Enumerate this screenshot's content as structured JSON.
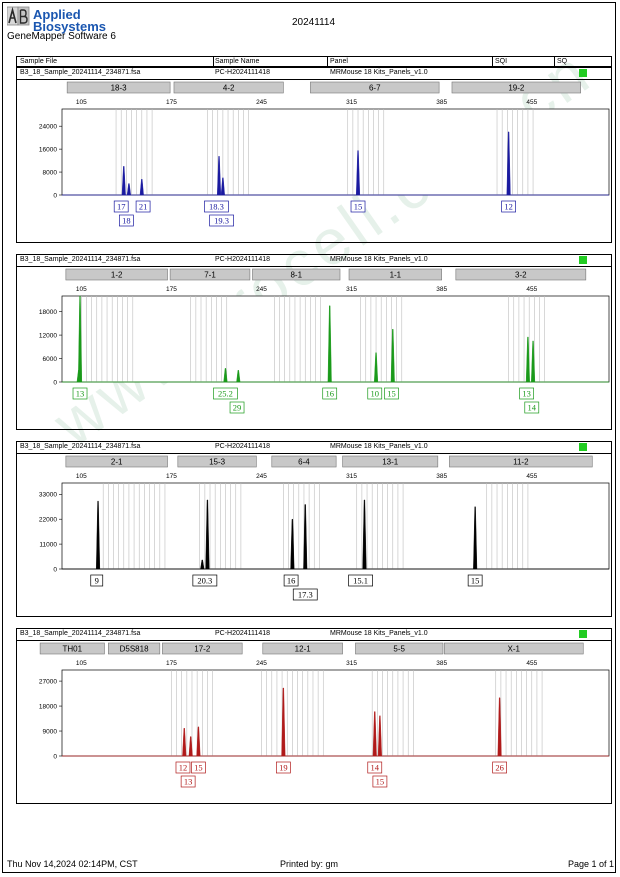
{
  "header": {
    "brand_line1": "Applied",
    "brand_line2": "Biosystems",
    "software": "GeneMapper Software 6",
    "date": "20241114"
  },
  "columns": {
    "sample_file": "Sample File",
    "sample_name": "Sample Name",
    "panel": "Panel",
    "sqi": "SQI",
    "sq": "SQ"
  },
  "watermark": "www.procell.com.cn",
  "colors": {
    "blue": "#1a1aa0",
    "green": "#1a9a1a",
    "black": "#000000",
    "red": "#b01a1a",
    "marker_bg": "#c8c8c8",
    "sq_ok": "#22cc22"
  },
  "chart_data": [
    {
      "type": "line",
      "dye": "blue",
      "sample_file": "B3_18_Sample_20241114_234871.fsa",
      "sample_name": "PC-H2024111418",
      "panel": "MRMouse 18 Kits_Panels_v1.0",
      "x_ticks": [
        "105",
        "175",
        "245",
        "315",
        "385",
        "455"
      ],
      "xlim": [
        90,
        515
      ],
      "y_ticks": [
        "0",
        "8000",
        "16000",
        "24000"
      ],
      "ylim": [
        0,
        30000
      ],
      "markers": [
        {
          "label": "18-3",
          "start": 94,
          "end": 174
        },
        {
          "label": "4-2",
          "start": 177,
          "end": 262
        },
        {
          "label": "6-7",
          "start": 283,
          "end": 383
        },
        {
          "label": "19-2",
          "start": 393,
          "end": 493
        }
      ],
      "bins": [
        132,
        136,
        140,
        144,
        148,
        152,
        156,
        160,
        203,
        207,
        211,
        215,
        219,
        223,
        227,
        231,
        235,
        312,
        316,
        320,
        324,
        328,
        332,
        336,
        340,
        428,
        432,
        436,
        440,
        444,
        448,
        452,
        456
      ],
      "peaks": [
        {
          "x": 138,
          "y": 10000
        },
        {
          "x": 142,
          "y": 4000
        },
        {
          "x": 152,
          "y": 5500
        },
        {
          "x": 212,
          "y": 13500
        },
        {
          "x": 215,
          "y": 6000
        },
        {
          "x": 320,
          "y": 15500
        },
        {
          "x": 437,
          "y": 22000
        }
      ],
      "alleles": [
        {
          "label": "17",
          "x": 136,
          "row": 0
        },
        {
          "label": "18",
          "x": 140,
          "row": 1
        },
        {
          "label": "21",
          "x": 153,
          "row": 0
        },
        {
          "label": "18.3",
          "x": 210,
          "row": 0
        },
        {
          "label": "19.3",
          "x": 214,
          "row": 1
        },
        {
          "label": "15",
          "x": 320,
          "row": 0
        },
        {
          "label": "12",
          "x": 437,
          "row": 0
        }
      ]
    },
    {
      "type": "line",
      "dye": "green",
      "sample_file": "B3_18_Sample_20241114_234871.fsa",
      "sample_name": "PC-H2024111418",
      "panel": "MRMouse 18 Kits_Panels_v1.0",
      "x_ticks": [
        "105",
        "175",
        "245",
        "315",
        "385",
        "455"
      ],
      "xlim": [
        90,
        515
      ],
      "y_ticks": [
        "0",
        "6000",
        "12000",
        "18000"
      ],
      "ylim": [
        0,
        22000
      ],
      "markers": [
        {
          "label": "1-2",
          "start": 93,
          "end": 172
        },
        {
          "label": "7-1",
          "start": 174,
          "end": 236
        },
        {
          "label": "8-1",
          "start": 238,
          "end": 306
        },
        {
          "label": "1-1",
          "start": 313,
          "end": 385
        },
        {
          "label": "3-2",
          "start": 396,
          "end": 497
        }
      ],
      "bins": [
        105,
        109,
        113,
        117,
        121,
        125,
        129,
        133,
        137,
        141,
        145,
        190,
        194,
        198,
        202,
        206,
        210,
        214,
        218,
        255,
        259,
        263,
        267,
        271,
        275,
        279,
        283,
        287,
        291,
        322,
        326,
        330,
        334,
        338,
        342,
        346,
        350,
        354,
        437,
        441,
        445,
        449,
        453,
        457,
        461,
        465
      ],
      "peaks": [
        {
          "x": 104,
          "y": 22000
        },
        {
          "x": 103,
          "y": 3000
        },
        {
          "x": 217,
          "y": 3500
        },
        {
          "x": 227,
          "y": 3000
        },
        {
          "x": 298,
          "y": 19500
        },
        {
          "x": 334,
          "y": 7500
        },
        {
          "x": 347,
          "y": 13500
        },
        {
          "x": 452,
          "y": 11500
        },
        {
          "x": 456,
          "y": 10500
        }
      ],
      "alleles": [
        {
          "label": "13",
          "x": 104,
          "row": 0
        },
        {
          "label": "25.2",
          "x": 217,
          "row": 0
        },
        {
          "label": "29",
          "x": 226,
          "row": 1
        },
        {
          "label": "16",
          "x": 298,
          "row": 0
        },
        {
          "label": "10",
          "x": 333,
          "row": 0
        },
        {
          "label": "15",
          "x": 346,
          "row": 0
        },
        {
          "label": "13",
          "x": 451,
          "row": 0
        },
        {
          "label": "14",
          "x": 455,
          "row": 1
        }
      ]
    },
    {
      "type": "line",
      "dye": "black",
      "sample_file": "B3_18_Sample_20241114_234871.fsa",
      "sample_name": "PC-H2024111418",
      "panel": "MRMouse 18 Kits_Panels_v1.0",
      "x_ticks": [
        "105",
        "175",
        "245",
        "315",
        "385",
        "455"
      ],
      "xlim": [
        90,
        515
      ],
      "y_ticks": [
        "0",
        "11000",
        "22000",
        "33000"
      ],
      "ylim": [
        0,
        38000
      ],
      "markers": [
        {
          "label": "2-1",
          "start": 93,
          "end": 172
        },
        {
          "label": "15-3",
          "start": 180,
          "end": 241
        },
        {
          "label": "6-4",
          "start": 253,
          "end": 303
        },
        {
          "label": "13-1",
          "start": 308,
          "end": 382
        },
        {
          "label": "11-2",
          "start": 391,
          "end": 502
        }
      ],
      "bins": [
        122,
        126,
        130,
        134,
        138,
        142,
        146,
        150,
        154,
        158,
        162,
        166,
        170,
        197,
        201,
        205,
        209,
        213,
        217,
        221,
        225,
        229,
        262,
        266,
        270,
        274,
        278,
        282,
        286,
        290,
        319,
        323,
        327,
        331,
        335,
        339,
        343,
        347,
        351,
        355,
        420,
        424,
        428,
        432,
        436,
        440,
        444,
        448,
        452
      ],
      "peaks": [
        {
          "x": 118,
          "y": 30000
        },
        {
          "x": 203,
          "y": 30500
        },
        {
          "x": 199,
          "y": 4000
        },
        {
          "x": 269,
          "y": 22000
        },
        {
          "x": 279,
          "y": 28500
        },
        {
          "x": 325,
          "y": 30500
        },
        {
          "x": 411,
          "y": 27500
        }
      ],
      "alleles": [
        {
          "label": "9",
          "x": 117,
          "row": 0
        },
        {
          "label": "20.3",
          "x": 201,
          "row": 0
        },
        {
          "label": "16",
          "x": 268,
          "row": 0
        },
        {
          "label": "17.3",
          "x": 279,
          "row": 1
        },
        {
          "label": "15.1",
          "x": 322,
          "row": 0
        },
        {
          "label": "15",
          "x": 411,
          "row": 0
        }
      ]
    },
    {
      "type": "line",
      "dye": "red",
      "sample_file": "B3_18_Sample_20241114_234871.fsa",
      "sample_name": "PC-H2024111418",
      "panel": "MRMouse 18 Kits_Panels_v1.0",
      "x_ticks": [
        "105",
        "175",
        "245",
        "315",
        "385",
        "455"
      ],
      "xlim": [
        90,
        515
      ],
      "y_ticks": [
        "0",
        "9000",
        "18000",
        "27000"
      ],
      "ylim": [
        0,
        31000
      ],
      "markers": [
        {
          "label": "TH01",
          "start": 73,
          "end": 123
        },
        {
          "label": "D5S818",
          "start": 126,
          "end": 166
        },
        {
          "label": "17-2",
          "start": 168,
          "end": 230
        },
        {
          "label": "12-1",
          "start": 246,
          "end": 308
        },
        {
          "label": "5-5",
          "start": 318,
          "end": 386
        },
        {
          "label": "X-1",
          "start": 387,
          "end": 495
        }
      ],
      "bins": [
        175,
        179,
        183,
        187,
        191,
        195,
        199,
        203,
        207,
        245,
        249,
        253,
        257,
        261,
        265,
        269,
        273,
        277,
        281,
        285,
        289,
        293,
        331,
        335,
        339,
        343,
        347,
        351,
        355,
        359,
        363,
        427,
        431,
        435,
        439,
        443,
        447,
        451,
        455,
        459,
        463
      ],
      "peaks": [
        {
          "x": 185,
          "y": 10000
        },
        {
          "x": 190,
          "y": 7000
        },
        {
          "x": 196,
          "y": 10500
        },
        {
          "x": 262,
          "y": 24500
        },
        {
          "x": 333,
          "y": 16000
        },
        {
          "x": 337,
          "y": 14500
        },
        {
          "x": 430,
          "y": 21000
        }
      ],
      "alleles": [
        {
          "label": "12",
          "x": 184,
          "row": 0
        },
        {
          "label": "13",
          "x": 188,
          "row": 1
        },
        {
          "label": "15",
          "x": 196,
          "row": 0
        },
        {
          "label": "19",
          "x": 262,
          "row": 0
        },
        {
          "label": "14",
          "x": 333,
          "row": 0
        },
        {
          "label": "15",
          "x": 337,
          "row": 1
        },
        {
          "label": "26",
          "x": 430,
          "row": 0
        }
      ]
    }
  ],
  "footer": {
    "timestamp": "Thu Nov 14,2024 02:14PM, CST",
    "printed_by": "Printed by: gm",
    "page": "Page 1 of 1"
  }
}
